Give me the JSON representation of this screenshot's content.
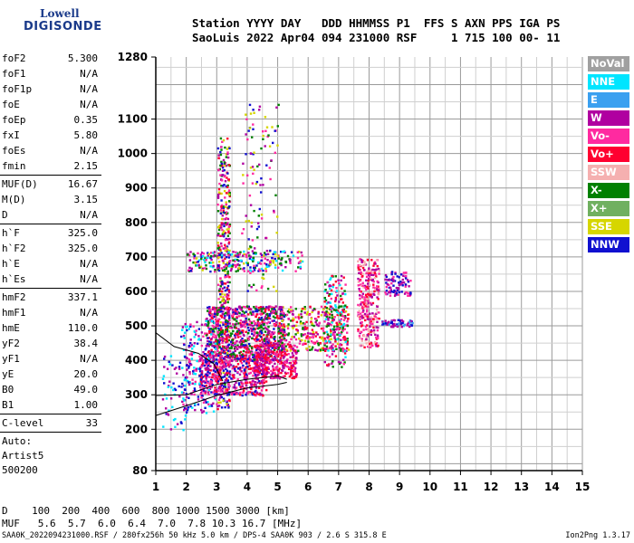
{
  "logo": {
    "line1": "Lowell",
    "line2": "DIGISONDE"
  },
  "header": {
    "row1": "Station YYYY DAY   DDD HHMMSS P1  FFS S AXN PPS IGA PS",
    "row2": "SaoLuis 2022 Apr04 094 231000 RSF     1 715 100 00- 11"
  },
  "params": [
    {
      "label": "foF2",
      "value": "5.300"
    },
    {
      "label": "foF1",
      "value": "N/A"
    },
    {
      "label": "foF1p",
      "value": "N/A"
    },
    {
      "label": "foE",
      "value": "N/A"
    },
    {
      "label": "foEp",
      "value": "0.35"
    },
    {
      "label": "fxI",
      "value": "5.80"
    },
    {
      "label": "foEs",
      "value": "N/A"
    },
    {
      "label": "fmin",
      "value": "2.15"
    },
    {
      "sep": true
    },
    {
      "label": "MUF(D)",
      "value": "16.67"
    },
    {
      "label": "M(D)",
      "value": "3.15"
    },
    {
      "label": "D",
      "value": "N/A"
    },
    {
      "sep": true
    },
    {
      "label": "h`F",
      "value": "325.0"
    },
    {
      "label": "h`F2",
      "value": "325.0"
    },
    {
      "label": "h`E",
      "value": "N/A"
    },
    {
      "label": "h`Es",
      "value": "N/A"
    },
    {
      "sep": true
    },
    {
      "label": "hmF2",
      "value": "337.1"
    },
    {
      "label": "hmF1",
      "value": "N/A"
    },
    {
      "label": "hmE",
      "value": "110.0"
    },
    {
      "label": "yF2",
      "value": "38.4"
    },
    {
      "label": "yF1",
      "value": "N/A"
    },
    {
      "label": "yE",
      "value": "20.0"
    },
    {
      "label": "B0",
      "value": "49.0"
    },
    {
      "label": "B1",
      "value": "1.00"
    },
    {
      "sep": true
    },
    {
      "label": "C-level",
      "value": "33"
    },
    {
      "sep": true
    }
  ],
  "auto": {
    "line1": "Auto:",
    "line2": "Artist5",
    "line3": "500200"
  },
  "legend": [
    {
      "label": "NoVal",
      "color": "#a0a0a0"
    },
    {
      "label": "NNE",
      "color": "#00e5ff"
    },
    {
      "label": "E",
      "color": "#3aa0f0"
    },
    {
      "label": "W",
      "color": "#b000a0"
    },
    {
      "label": "Vo-",
      "color": "#ff2aa0"
    },
    {
      "label": "Vo+",
      "color": "#ff0030"
    },
    {
      "label": "SSW",
      "color": "#f5b0b0"
    },
    {
      "label": "X-",
      "color": "#008000"
    },
    {
      "label": "X+",
      "color": "#70b060"
    },
    {
      "label": "SSE",
      "color": "#d6d600"
    },
    {
      "label": "NNW",
      "color": "#1010d0"
    }
  ],
  "muf_table": {
    "row1": "D    100  200  400  600  800 1000 1500 3000 [km]",
    "row2": "MUF   5.6  5.7  6.0  6.4  7.0  7.8 10.3 16.7 [MHz]"
  },
  "footer": {
    "left": "SAA0K_2022094231000.RSF / 280fx256h 50 kHz 5.0 km / DPS-4 SAA0K 903 / 2.6 S 315.8 E",
    "right": "Ion2Png 1.3.17"
  },
  "chart_data": {
    "type": "scatter",
    "xlim": [
      1,
      15
    ],
    "ylim": [
      80,
      1280
    ],
    "x_ticks": [
      "1",
      "2",
      "3",
      "4",
      "5",
      "6",
      "7",
      "8",
      "9",
      "10",
      "11",
      "12",
      "13",
      "14",
      "15"
    ],
    "y_ticks": [
      80,
      200,
      300,
      400,
      500,
      600,
      700,
      800,
      900,
      1000,
      1100,
      1280
    ],
    "grid": true,
    "clusters": [
      {
        "x": [
          3.0,
          3.4
        ],
        "y": [
          260,
          1050
        ],
        "n": 420,
        "colors": [
          "#b000a0",
          "#ff2aa0",
          "#ff0030",
          "#1010d0",
          "#008000",
          "#d6d600"
        ]
      },
      {
        "x": [
          2.6,
          5.2
        ],
        "y": [
          400,
          560
        ],
        "n": 900,
        "colors": [
          "#b000a0",
          "#ff2aa0",
          "#ff0030",
          "#1010d0",
          "#008000"
        ]
      },
      {
        "x": [
          2.4,
          4.6
        ],
        "y": [
          300,
          420
        ],
        "n": 450,
        "colors": [
          "#b000a0",
          "#1010d0",
          "#ff2aa0",
          "#ff0030"
        ]
      },
      {
        "x": [
          4.2,
          5.6
        ],
        "y": [
          350,
          450
        ],
        "n": 300,
        "colors": [
          "#ff0030",
          "#ff2aa0",
          "#b000a0"
        ]
      },
      {
        "x": [
          1.8,
          3.0
        ],
        "y": [
          250,
          520
        ],
        "n": 200,
        "colors": [
          "#b000a0",
          "#1010d0",
          "#00e5ff",
          "#ff2aa0"
        ]
      },
      {
        "x": [
          2.0,
          5.8
        ],
        "y": [
          660,
          720
        ],
        "n": 260,
        "colors": [
          "#d6d600",
          "#00e5ff",
          "#ff2aa0",
          "#b000a0",
          "#008000",
          "#1010d0"
        ]
      },
      {
        "x": [
          5.0,
          7.3
        ],
        "y": [
          430,
          560
        ],
        "n": 320,
        "colors": [
          "#ff2aa0",
          "#b000a0",
          "#ff0030",
          "#008000",
          "#d6d600"
        ]
      },
      {
        "x": [
          6.5,
          7.2
        ],
        "y": [
          380,
          650
        ],
        "n": 180,
        "colors": [
          "#ff2aa0",
          "#ff0030",
          "#b000a0",
          "#008000",
          "#00e5ff"
        ]
      },
      {
        "x": [
          7.6,
          8.3
        ],
        "y": [
          440,
          700
        ],
        "n": 300,
        "colors": [
          "#ff2aa0",
          "#b000a0",
          "#ff0030",
          "#f5b0b0"
        ]
      },
      {
        "x": [
          8.5,
          9.4
        ],
        "y": [
          590,
          660
        ],
        "n": 90,
        "colors": [
          "#b000a0",
          "#ff2aa0",
          "#1010d0"
        ]
      },
      {
        "x": [
          8.4,
          9.4
        ],
        "y": [
          500,
          520
        ],
        "n": 60,
        "colors": [
          "#3aa0f0",
          "#1010d0",
          "#b000a0"
        ]
      },
      {
        "x": [
          3.8,
          5.0
        ],
        "y": [
          600,
          1150
        ],
        "n": 120,
        "colors": [
          "#b000a0",
          "#ff2aa0",
          "#1010d0",
          "#d6d600",
          "#008000"
        ]
      },
      {
        "x": [
          1.2,
          2.0
        ],
        "y": [
          200,
          420
        ],
        "n": 60,
        "colors": [
          "#1010d0",
          "#b000a0",
          "#00e5ff"
        ]
      }
    ],
    "traces": [
      {
        "name": "",
        "x": [
          1.0,
          2.0,
          3.0,
          4.0,
          5.0,
          5.3
        ],
        "y": [
          240,
          268,
          298,
          320,
          330,
          336
        ]
      },
      {
        "name": "",
        "x": [
          1.0,
          2.0,
          3.0,
          4.0,
          5.0,
          5.3
        ],
        "y": [
          298,
          300,
          330,
          345,
          355,
          345
        ]
      },
      {
        "name": "",
        "x": [
          1.0,
          1.6,
          2.4,
          2.9,
          3.2
        ],
        "y": [
          480,
          440,
          420,
          390,
          340
        ]
      }
    ]
  }
}
